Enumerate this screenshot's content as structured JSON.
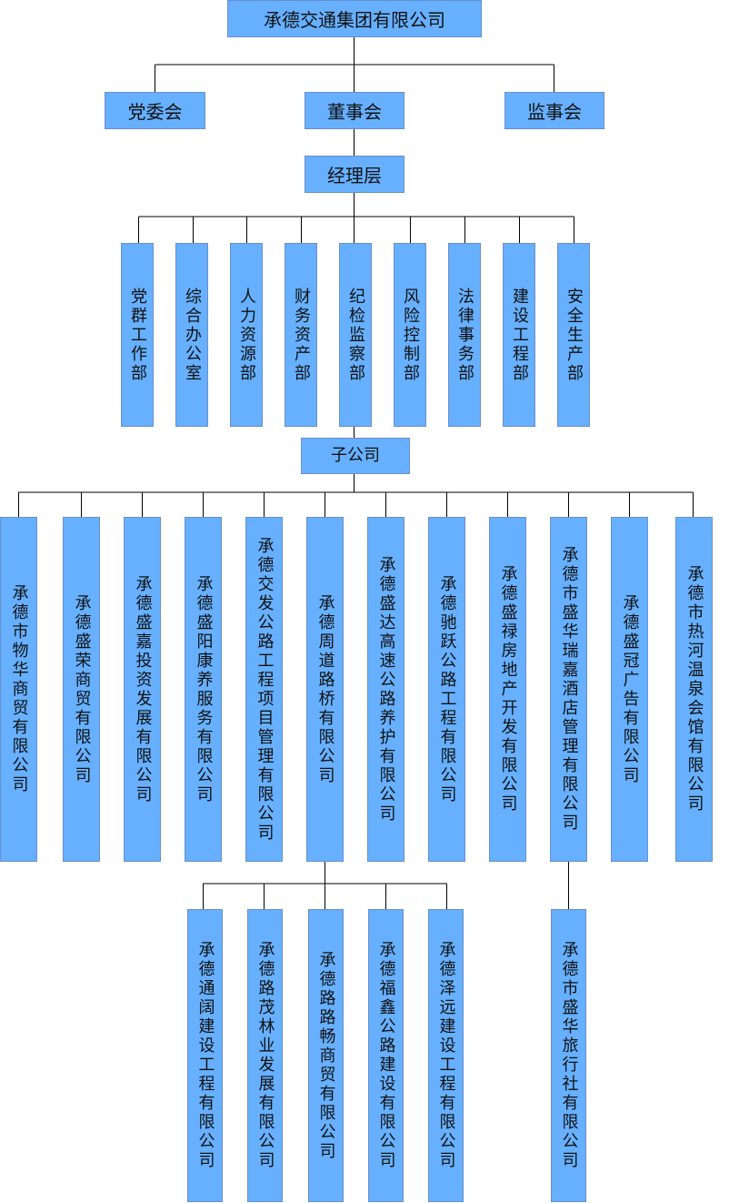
{
  "root": "承德交通集团有限公司",
  "governance": [
    "党委会",
    "董事会",
    "监事会"
  ],
  "management": "经理层",
  "departments": [
    "党群工作部",
    "综合办公室",
    "人力资源部",
    "财务资产部",
    "纪检监察部",
    "风险控制部",
    "法律事务部",
    "建设工程部",
    "安全生产部"
  ],
  "subsidiaries_label": "子公司",
  "subsidiaries": [
    "承德市物华商贸有限公司",
    "承德盛荣商贸有限公司",
    "承德盛嘉投资发展有限公司",
    "承德盛阳康养服务有限公司",
    "承德交发公路工程项目管理有限公司",
    "承德周道路桥有限公司",
    "承德盛达高速公路养护有限公司",
    "承德驰跃公路工程有限公司",
    "承德盛禄房地产开发有限公司",
    "承德市盛华瑞嘉酒店管理有限公司",
    "承德盛冠广告有限公司",
    "承德市热河温泉会馆有限公司"
  ],
  "zhoudao_children": [
    "承德通阔建设工程有限公司",
    "承德路茂林业发展有限公司",
    "承德路路畅商贸有限公司",
    "承德福鑫公路建设有限公司",
    "承德泽远建设工程有限公司"
  ],
  "ruijia_children": [
    "承德市盛华旅行社有限公司"
  ],
  "colors": {
    "box_fill": "#66b0ff",
    "box_border": "#6a8fc8",
    "line": "#000000"
  }
}
